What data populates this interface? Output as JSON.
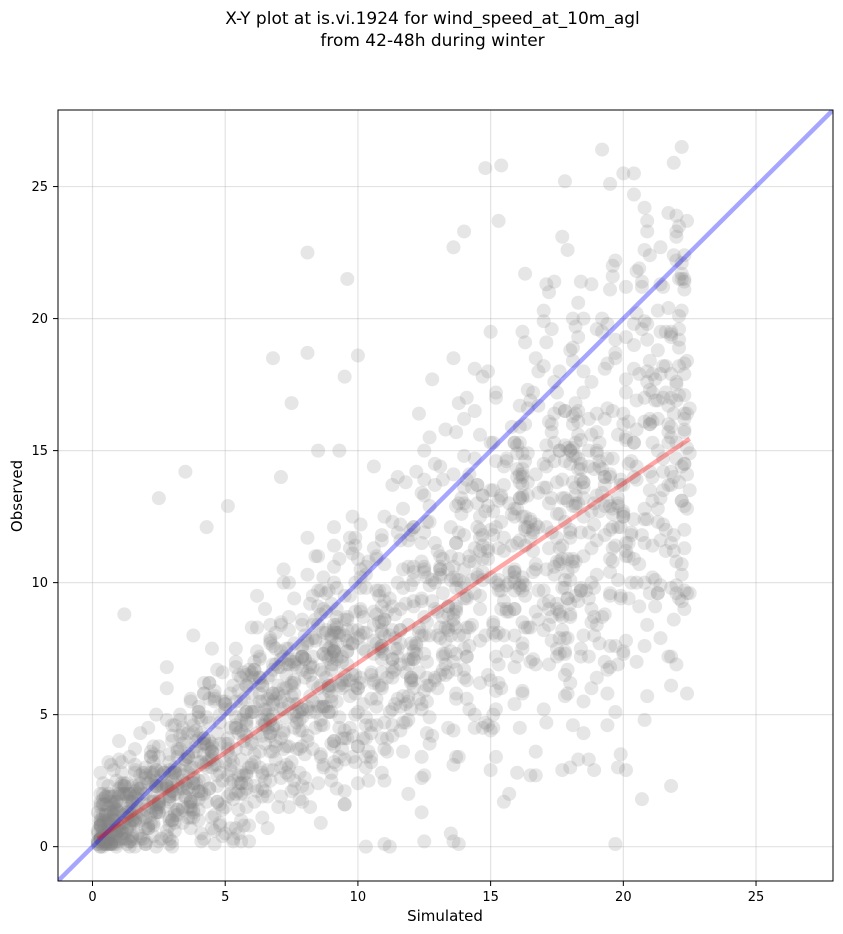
{
  "title_line1": "X-Y plot at is.vi.1924 for wind_speed_at_10m_agl",
  "title_line2": "from 42-48h during winter",
  "chart_data": {
    "type": "scatter",
    "title": "X-Y plot at is.vi.1924 for wind_speed_at_10m_agl\nfrom 42-48h during winter",
    "xlabel": "Simulated",
    "ylabel": "Observed",
    "xlim": [
      -1.3,
      27.9
    ],
    "ylim": [
      -1.3,
      27.9
    ],
    "xticks": [
      0,
      5,
      10,
      15,
      20,
      25
    ],
    "yticks": [
      0,
      5,
      10,
      15,
      20,
      25
    ],
    "grid": true,
    "legend": "none",
    "scatter_style": {
      "color": "#808080",
      "alpha": 0.2,
      "marker": "circle"
    },
    "approx_point_count": 2000,
    "lines": [
      {
        "role": "1:1 line",
        "color": "#0000ff",
        "alpha": 0.35,
        "x": [
          -1.3,
          27.9
        ],
        "y": [
          -1.3,
          27.9
        ]
      },
      {
        "role": "fit line",
        "color": "#ff0000",
        "alpha": 0.35,
        "x": [
          0.2,
          22.5
        ],
        "y": [
          0.3,
          15.45
        ]
      }
    ],
    "points_sample": [
      [
        7.5,
        7.0
      ],
      [
        6.5,
        5.0
      ],
      [
        12.5,
        10.5
      ],
      [
        15.0,
        12.0
      ],
      [
        9.5,
        8.0
      ],
      [
        6.0,
        3.0
      ],
      [
        3.0,
        1.0
      ],
      [
        2.0,
        0.1
      ],
      [
        14.5,
        13.0
      ],
      [
        13.5,
        11.0
      ],
      [
        0.3,
        1.7
      ],
      [
        1.0,
        4.0
      ],
      [
        1.2,
        8.8
      ],
      [
        2.5,
        13.2
      ],
      [
        3.5,
        14.2
      ],
      [
        4.3,
        12.1
      ],
      [
        5.1,
        12.9
      ],
      [
        6.8,
        18.5
      ],
      [
        8.1,
        22.5
      ],
      [
        8.1,
        18.7
      ],
      [
        9.6,
        21.5
      ],
      [
        13.6,
        22.7
      ],
      [
        14.0,
        23.3
      ],
      [
        14.8,
        25.7
      ],
      [
        15.4,
        25.8
      ],
      [
        15.3,
        23.7
      ],
      [
        17.8,
        25.2
      ],
      [
        19.2,
        26.4
      ],
      [
        20.0,
        25.5
      ],
      [
        20.4,
        25.5
      ],
      [
        22.2,
        26.5
      ],
      [
        20.9,
        23.3
      ],
      [
        22.4,
        23.7
      ],
      [
        21.9,
        22.4
      ],
      [
        17.4,
        21.4
      ],
      [
        16.3,
        21.7
      ],
      [
        19.6,
        22.0
      ],
      [
        22.3,
        22.4
      ],
      [
        21.0,
        17.3
      ],
      [
        20.9,
        5.7
      ],
      [
        20.7,
        1.8
      ],
      [
        15.7,
        2.0
      ],
      [
        12.4,
        1.3
      ],
      [
        13.8,
        0.1
      ],
      [
        12.5,
        0.2
      ],
      [
        10.3,
        0.0
      ],
      [
        11.2,
        0.0
      ],
      [
        15.1,
        4.5
      ],
      [
        17.8,
        5.7
      ],
      [
        18.1,
        4.6
      ],
      [
        19.3,
        7.0
      ],
      [
        21.4,
        9.9
      ],
      [
        20.4,
        10.9
      ],
      [
        22.3,
        15.7
      ],
      [
        21.1,
        14.0
      ],
      [
        20.0,
        12.5
      ],
      [
        18.8,
        11.3
      ],
      [
        17.6,
        8.9
      ],
      [
        16.5,
        7.0
      ],
      [
        16.1,
        9.9
      ],
      [
        10.0,
        18.6
      ],
      [
        9.5,
        17.8
      ],
      [
        8.5,
        15.0
      ],
      [
        7.5,
        16.8
      ],
      [
        7.1,
        14.0
      ],
      [
        9.3,
        15.0
      ],
      [
        11.0,
        12.5
      ],
      [
        11.5,
        10.0
      ],
      [
        10.8,
        7.5
      ],
      [
        9.0,
        5.5
      ],
      [
        8.0,
        3.5
      ],
      [
        7.0,
        1.5
      ],
      [
        5.0,
        0.5
      ],
      [
        4.0,
        2.5
      ],
      [
        3.5,
        4.0
      ],
      [
        2.0,
        3.0
      ],
      [
        1.5,
        1.0
      ],
      [
        0.6,
        0.3
      ],
      [
        1.0,
        2.2
      ],
      [
        2.8,
        6.8
      ],
      [
        3.8,
        8.0
      ],
      [
        4.5,
        7.5
      ],
      [
        5.5,
        6.5
      ],
      [
        6.5,
        9.0
      ],
      [
        7.2,
        10.5
      ],
      [
        8.5,
        11.0
      ],
      [
        9.8,
        12.5
      ],
      [
        11.5,
        14.0
      ],
      [
        12.7,
        15.5
      ],
      [
        13.8,
        16.8
      ],
      [
        15.2,
        17.0
      ],
      [
        16.8,
        18.0
      ],
      [
        18.0,
        18.8
      ],
      [
        19.2,
        19.5
      ],
      [
        20.5,
        20.2
      ],
      [
        17.0,
        14.5
      ],
      [
        18.5,
        13.8
      ],
      [
        19.5,
        12.0
      ],
      [
        14.0,
        8.0
      ],
      [
        13.0,
        6.0
      ]
    ]
  }
}
